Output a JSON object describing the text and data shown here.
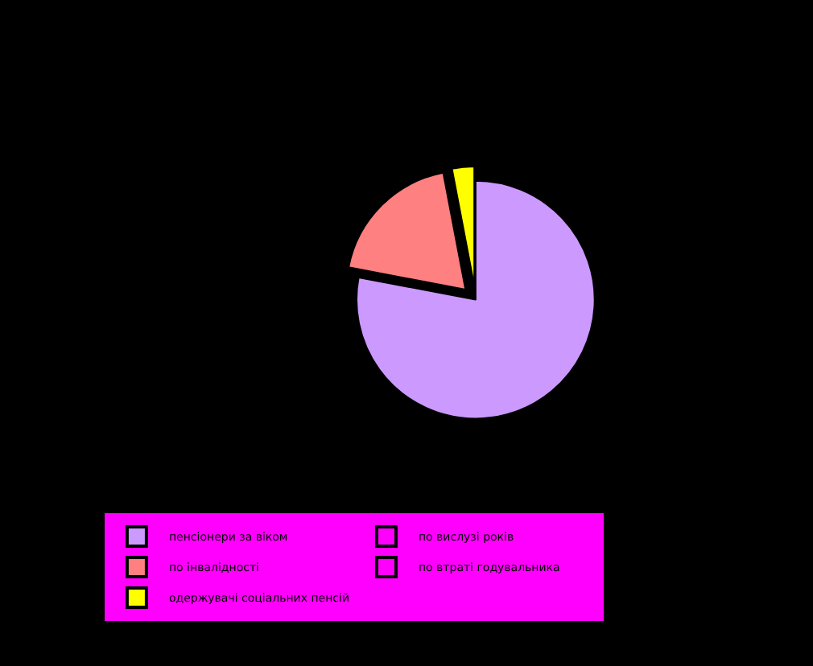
{
  "chart_data": {
    "type": "pie",
    "categories": [
      "пенсіонери за віком",
      "по вислузі років",
      "по інвалідності",
      "по втраті годувальника",
      "одержувачі соціальних пенсій"
    ],
    "values": [
      78,
      0,
      19,
      0,
      3
    ],
    "colors": [
      "#cc99ff",
      "#ff00ff",
      "#ff8080",
      "#ff00ff",
      "#ffff00"
    ],
    "legend": "bottom"
  }
}
